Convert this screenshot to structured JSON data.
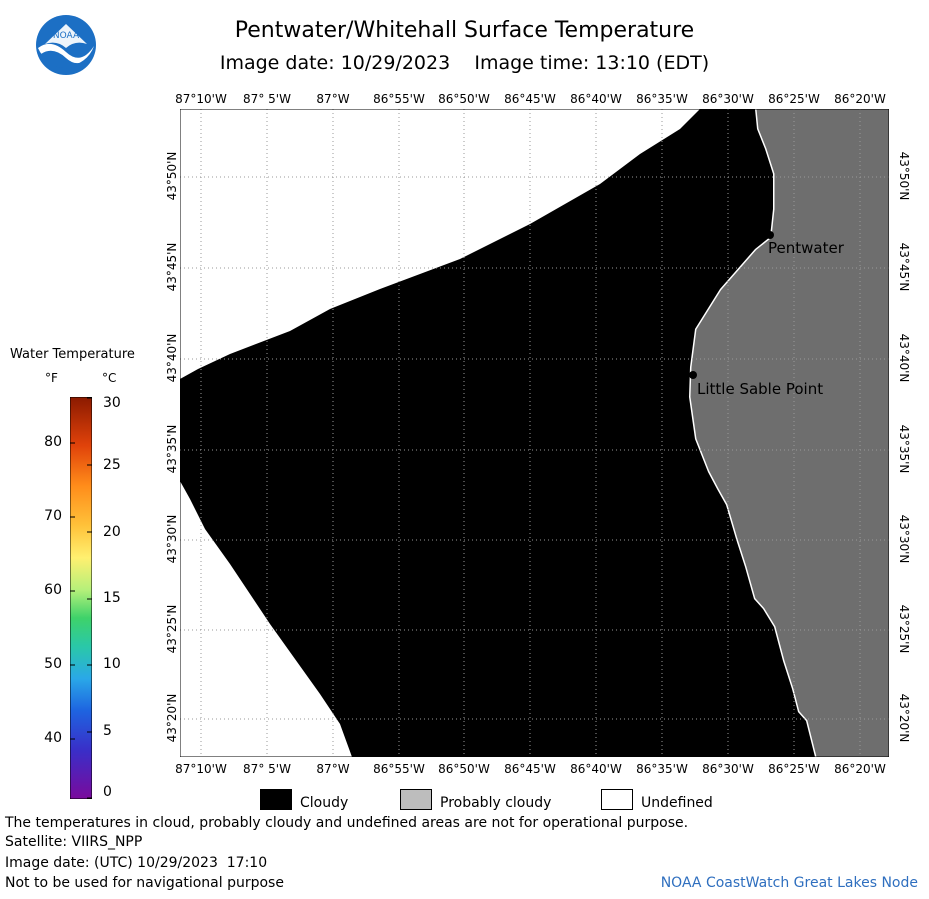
{
  "header": {
    "title": "Pentwater/Whitehall Surface Temperature",
    "subtitle": "Image date: 10/29/2023    Image time: 13:10 (EDT)",
    "logo_text": "NOAA"
  },
  "map": {
    "longitude_labels": [
      "87°10'W",
      "87° 5'W",
      "87°W",
      "86°55'W",
      "86°50'W",
      "86°45'W",
      "86°40'W",
      "86°35'W",
      "86°30'W",
      "86°25'W",
      "86°20'W"
    ],
    "latitude_labels": [
      "43°50'N",
      "43°45'N",
      "43°40'N",
      "43°35'N",
      "43°30'N",
      "43°25'N",
      "43°20'N"
    ],
    "places": {
      "pentwater": "Pentwater",
      "little_sable_point": "Little Sable Point"
    },
    "colors": {
      "cloudy": "#000000",
      "land": "#6e6e6e",
      "probably_cloudy": "#bdbdbd",
      "undefined": "#ffffff"
    }
  },
  "legend": {
    "title": "Water Temperature",
    "unit_f": "°F",
    "unit_c": "°C",
    "fahrenheit_ticks": [
      "80",
      "70",
      "60",
      "50",
      "40"
    ],
    "celsius_ticks": [
      "30",
      "25",
      "20",
      "15",
      "10",
      "5",
      "0"
    ]
  },
  "key": {
    "cloudy": "Cloudy",
    "probably_cloudy": "Probably cloudy",
    "undefined": "Undefined"
  },
  "footer": {
    "line1": "The temperatures in cloud, probably cloudy and undefined areas are not for operational purpose.",
    "line2": "Satellite: VIIRS_NPP",
    "line3": "Image date: (UTC) 10/29/2023  17:10",
    "line4": "Not to be used for navigational purpose",
    "node": "NOAA CoastWatch Great Lakes Node"
  }
}
